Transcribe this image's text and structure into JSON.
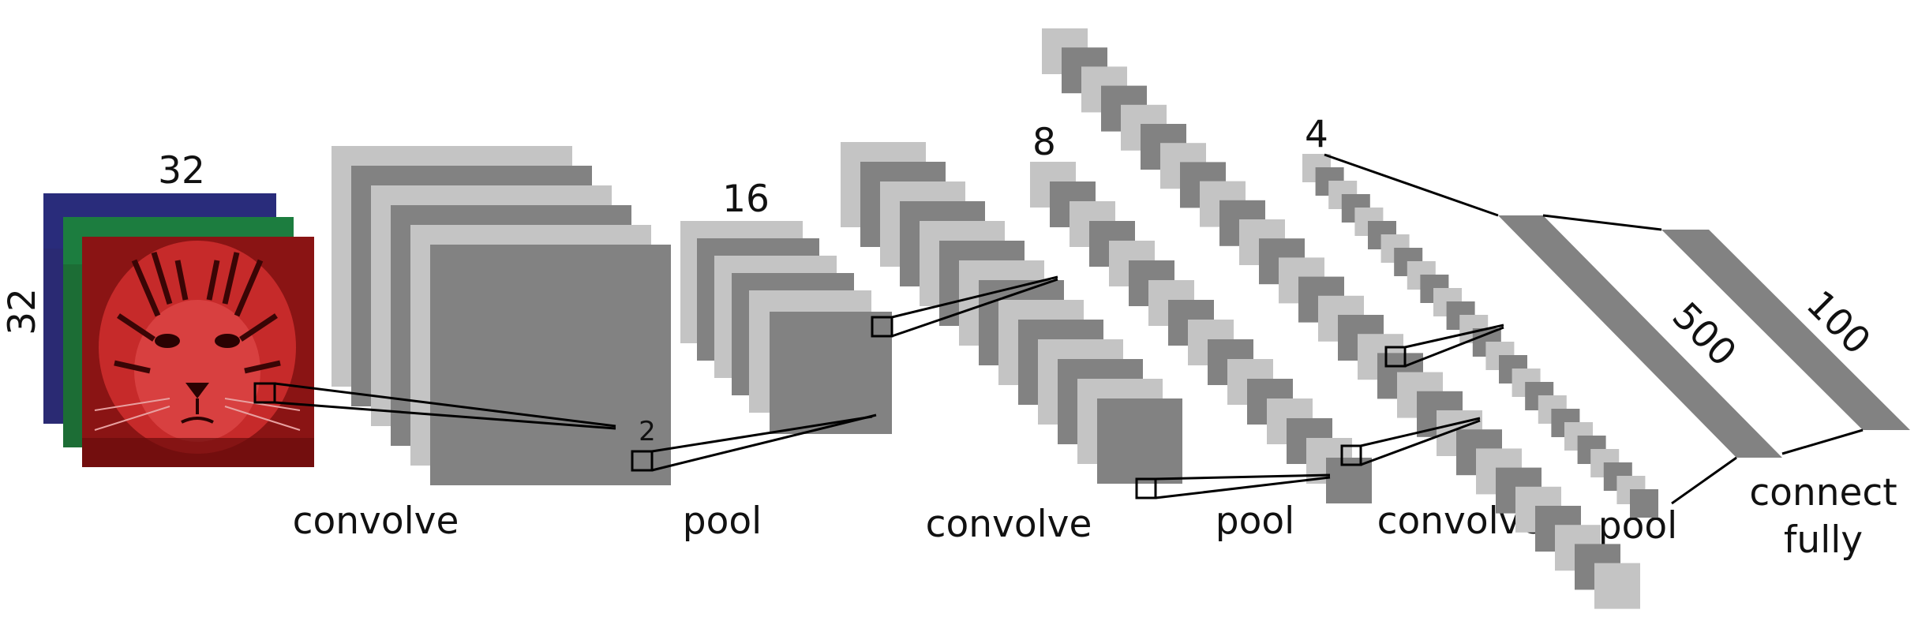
{
  "input": {
    "width_label": "32",
    "height_label": "32",
    "channels": [
      "blue",
      "green",
      "red"
    ],
    "channel_colors": [
      "#2a2a7a",
      "#1f7a3c",
      "#c0292a"
    ]
  },
  "stages": [
    {
      "label": "convolve"
    },
    {
      "label": "pool",
      "size_label": "16",
      "kernel_label": "2"
    },
    {
      "label": "convolve"
    },
    {
      "label": "pool",
      "size_label": "8"
    },
    {
      "label": "convolve"
    },
    {
      "label": "pool",
      "size_label": "4"
    }
  ],
  "fully_connected": {
    "layers": [
      {
        "size_label": "500"
      },
      {
        "size_label": "100"
      }
    ],
    "caption_line1": "connect",
    "caption_line2": "fully"
  },
  "colors": {
    "light_map": "#c4c4c4",
    "dark_map": "#828282",
    "outline": "#000000"
  }
}
